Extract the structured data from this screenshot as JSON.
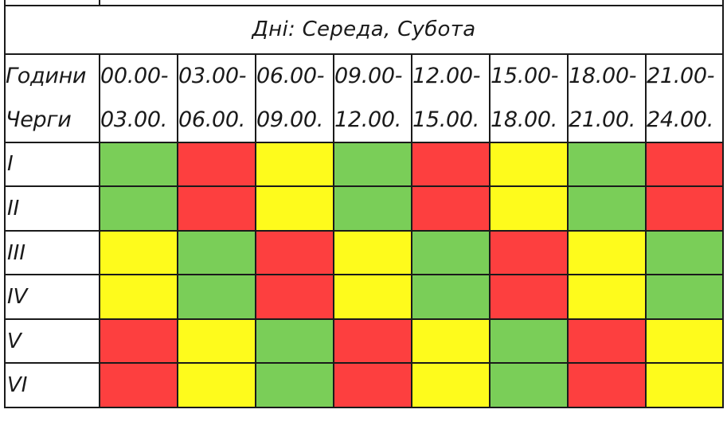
{
  "title": "Дні: Середа, Субота",
  "header": {
    "hours_label": "Години",
    "queues_label": "Черги",
    "time_starts": [
      "00.00-",
      "03.00-",
      "06.00-",
      "09.00-",
      "12.00-",
      "15.00-",
      "18.00-",
      "21.00-"
    ],
    "time_ends": [
      "03.00.",
      "06.00.",
      "09.00.",
      "12.00.",
      "15.00.",
      "18.00.",
      "21.00.",
      "24.00."
    ]
  },
  "colors": {
    "green": "#7ace58",
    "red": "#fd3f3f",
    "yellow": "#fefb1c"
  },
  "rows": [
    {
      "label": "I",
      "cells": [
        "green",
        "red",
        "yellow",
        "green",
        "red",
        "yellow",
        "green",
        "red"
      ]
    },
    {
      "label": "II",
      "cells": [
        "green",
        "red",
        "yellow",
        "green",
        "red",
        "yellow",
        "green",
        "red"
      ]
    },
    {
      "label": "III",
      "cells": [
        "yellow",
        "green",
        "red",
        "yellow",
        "green",
        "red",
        "yellow",
        "green"
      ]
    },
    {
      "label": "IV",
      "cells": [
        "yellow",
        "green",
        "red",
        "yellow",
        "green",
        "red",
        "yellow",
        "green"
      ]
    },
    {
      "label": "V",
      "cells": [
        "red",
        "yellow",
        "green",
        "red",
        "yellow",
        "green",
        "red",
        "yellow"
      ]
    },
    {
      "label": "VI",
      "cells": [
        "red",
        "yellow",
        "green",
        "red",
        "yellow",
        "green",
        "red",
        "yellow"
      ]
    }
  ]
}
